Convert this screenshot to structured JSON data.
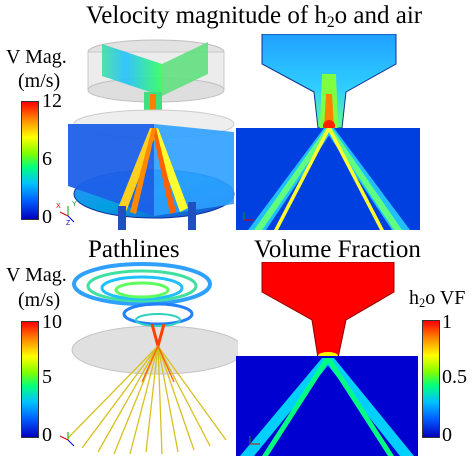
{
  "top": {
    "title_a": "Velocity magnitude of h",
    "title_sub": "2",
    "title_b": "o and air",
    "colorbar": {
      "label_line1": "V Mag.",
      "label_line2": "(m/s)",
      "ticks": [
        "12",
        "6",
        "0"
      ]
    }
  },
  "bottom": {
    "pathlines_title": "Pathlines",
    "volume_title": "Volume Fraction",
    "vmag_colorbar": {
      "label_line1": "V Mag.",
      "label_line2": "(m/s)",
      "ticks": [
        "10",
        "5",
        "0"
      ]
    },
    "vf_colorbar": {
      "label_a": "h",
      "label_sub": "2",
      "label_b": "o VF",
      "ticks": [
        "1",
        "0.5",
        "0"
      ]
    }
  },
  "axes_triad": {
    "x": "X",
    "y": "Y",
    "z": "Z"
  },
  "colors": {
    "red": "#ff0000",
    "orange": "#ff8000",
    "yellow": "#ffff00",
    "green": "#00ff80",
    "cyan": "#00c0ff",
    "blue": "#0000c0"
  }
}
